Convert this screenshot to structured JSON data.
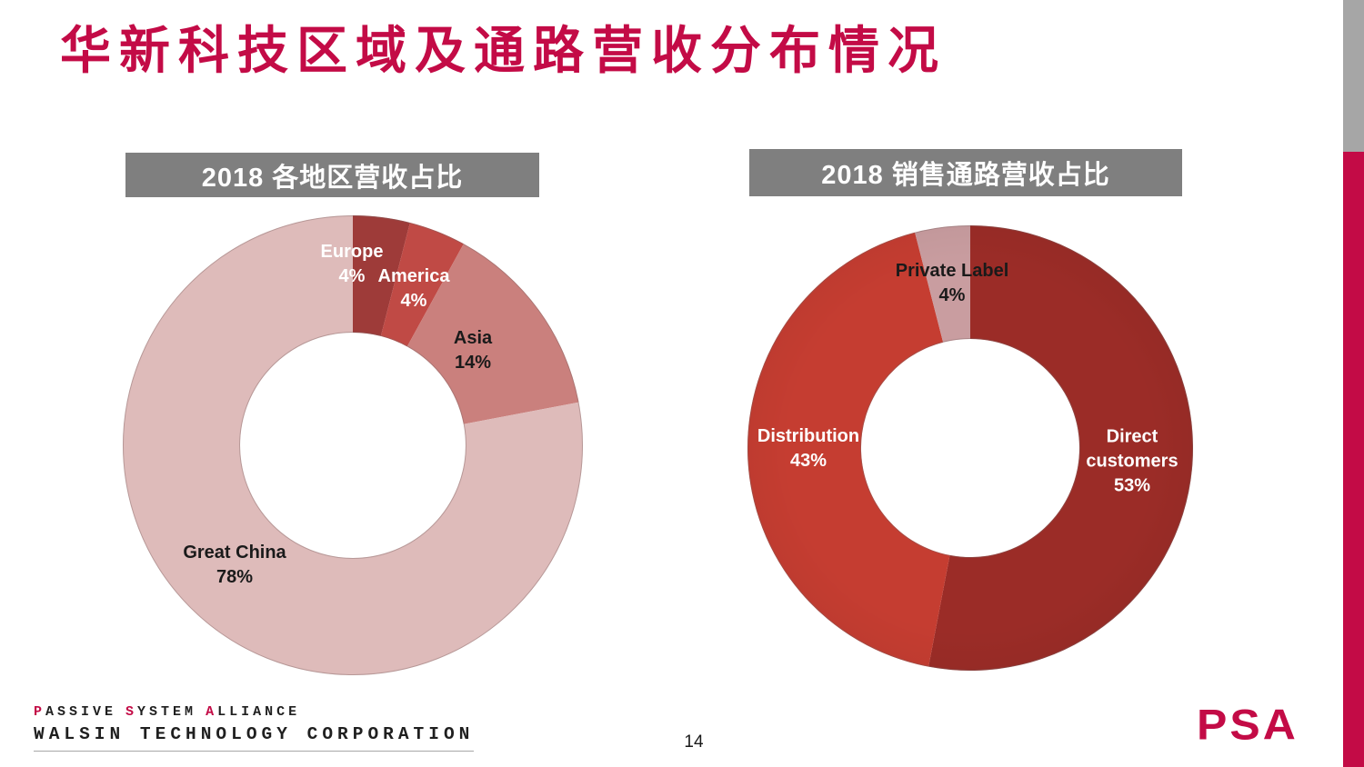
{
  "slide": {
    "title": "华新科技区域及通路营收分布情况",
    "page_number": "14"
  },
  "colors": {
    "accent": "#c30b46",
    "header_bar": "#7f7f7f",
    "sidebar_top_gray": "#a6a6a6",
    "label_dark": "#1a1a1a",
    "label_light": "#ffffff"
  },
  "chart_data": [
    {
      "type": "donut",
      "title": "2018 各地区营收占比",
      "hole_ratio": 0.49,
      "legend_position": "none",
      "slices": [
        {
          "label": "Europe",
          "value": 4,
          "value_label": "4%",
          "color": "#9e3b39",
          "text_color": "#ffffff"
        },
        {
          "label": "America",
          "value": 4,
          "value_label": "4%",
          "color": "#c04a45",
          "text_color": "#ffffff"
        },
        {
          "label": "Asia",
          "value": 14,
          "value_label": "14%",
          "color": "#ca807d",
          "text_color": "#1a1a1a"
        },
        {
          "label": "Great China",
          "value": 78,
          "value_label": "78%",
          "color": "#debbba",
          "text_color": "#1a1a1a"
        }
      ]
    },
    {
      "type": "donut",
      "title": "2018 销售通路营收占比",
      "hole_ratio": 0.49,
      "legend_position": "none",
      "slices": [
        {
          "label": "Direct customers",
          "value": 53,
          "value_label": "53%",
          "color": "#9b2c27",
          "text_color": "#ffffff"
        },
        {
          "label": "Distribution",
          "value": 43,
          "value_label": "43%",
          "color": "#c53d31",
          "text_color": "#ffffff"
        },
        {
          "label": "Private Label",
          "value": 4,
          "value_label": "4%",
          "color": "#c99da0",
          "text_color": "#1a1a1a"
        }
      ]
    }
  ],
  "footer": {
    "line1_parts": [
      "P",
      "ASSIVE",
      "S",
      "YSTEM",
      "A",
      "LLIANCE"
    ],
    "line2": "WALSIN TECHNOLOGY CORPORATION",
    "psa_logo": "PSA"
  }
}
